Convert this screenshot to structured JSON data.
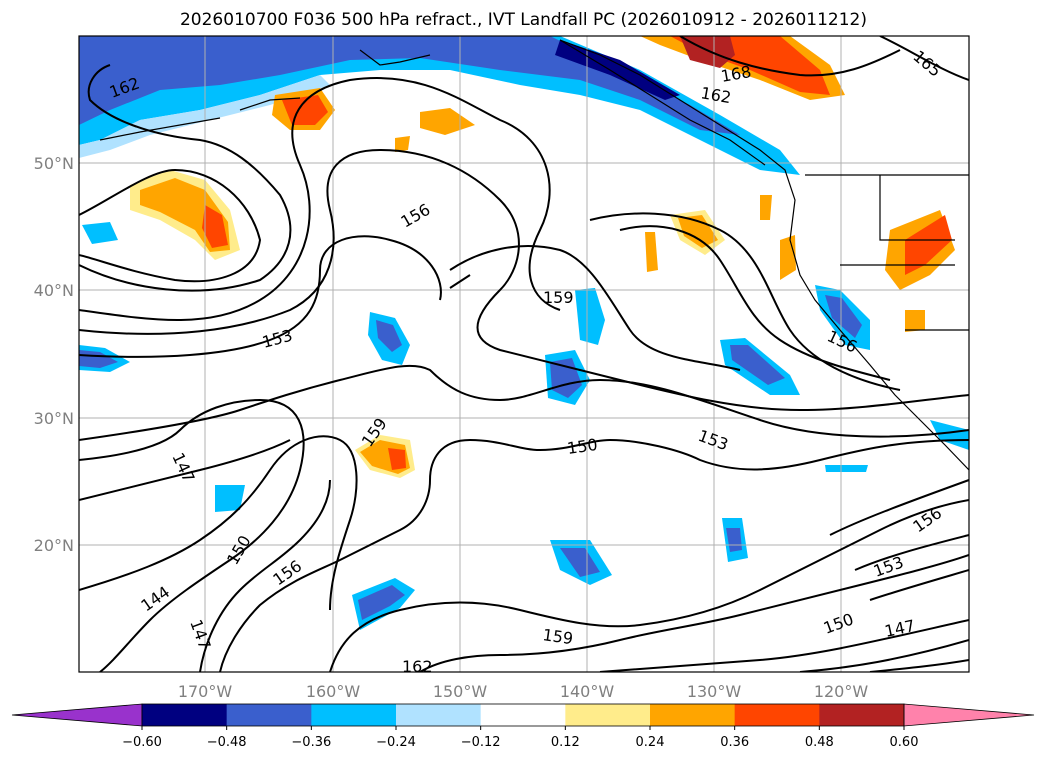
{
  "title": "2026010700 F036 500 hPa refract., IVT Landfall PC (2026010912 - 2026011212)",
  "map": {
    "lon_labels": [
      "170°W",
      "160°W",
      "150°W",
      "140°W",
      "130°W",
      "120°W"
    ],
    "lat_labels": [
      "50°N",
      "40°N",
      "30°N",
      "20°N"
    ]
  },
  "contour_labels": [
    "162",
    "168",
    "162",
    "165",
    "156",
    "159",
    "153",
    "156",
    "159",
    "150",
    "153",
    "147",
    "150",
    "156",
    "144",
    "147",
    "159",
    "162",
    "156",
    "153",
    "150",
    "147"
  ],
  "colorbar": {
    "colors": [
      "#9932cc",
      "#000080",
      "#3a5fcd",
      "#00bfff",
      "#b0e2ff",
      "#ffffff",
      "#ffec8b",
      "#ffa500",
      "#ff4500",
      "#b22222",
      "#ff82ab"
    ],
    "tick_labels": [
      "−0.60",
      "−0.48",
      "−0.36",
      "−0.24",
      "−0.12",
      "0.12",
      "0.24",
      "0.36",
      "0.48",
      "0.60"
    ]
  }
}
